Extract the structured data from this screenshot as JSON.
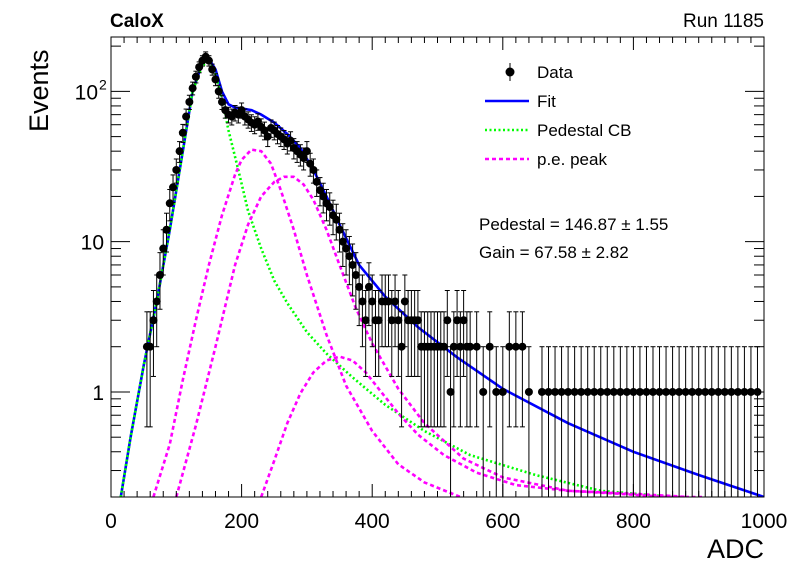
{
  "header": {
    "left": "CaloX",
    "right": "Run 1185"
  },
  "chart_data": {
    "type": "scatter",
    "xlabel": "ADC",
    "ylabel": "Events",
    "xlim": [
      0,
      1000
    ],
    "ylim": [
      0.2,
      230
    ],
    "yscale": "log",
    "x_ticks": [
      {
        "value": 0,
        "label": "0"
      },
      {
        "value": 200,
        "label": "200"
      },
      {
        "value": 400,
        "label": "400"
      },
      {
        "value": 600,
        "label": "600"
      },
      {
        "value": 800,
        "label": "800"
      },
      {
        "value": 1000,
        "label": "1000"
      }
    ],
    "y_ticks": [
      {
        "value": 1,
        "label": "1"
      },
      {
        "value": 10,
        "label": "10"
      },
      {
        "value": 100,
        "label": "10",
        "exp": "2"
      }
    ],
    "legend": {
      "position": "top-right",
      "entries": [
        {
          "label": "Data",
          "style": "marker",
          "color": "#000000"
        },
        {
          "label": "Fit",
          "style": "solid",
          "color": "#0000ff"
        },
        {
          "label": "Pedestal CB",
          "style": "dotted",
          "color": "#00ff00"
        },
        {
          "label": "p.e. peak",
          "style": "dashed",
          "color": "#ff00ff"
        }
      ]
    },
    "annotations": [
      {
        "text": "Pedestal = 146.87 ± 1.55"
      },
      {
        "text": "Gain = 67.58 ± 2.82"
      }
    ],
    "series": [
      {
        "name": "Data",
        "kind": "points",
        "color": "#000000",
        "x": [
          55,
          60,
          65,
          70,
          75,
          80,
          85,
          90,
          95,
          100,
          105,
          110,
          115,
          120,
          125,
          130,
          135,
          140,
          145,
          150,
          155,
          160,
          165,
          170,
          175,
          180,
          185,
          190,
          195,
          200,
          205,
          210,
          215,
          220,
          225,
          230,
          235,
          240,
          245,
          250,
          255,
          260,
          265,
          270,
          275,
          280,
          285,
          290,
          295,
          300,
          305,
          310,
          315,
          320,
          325,
          330,
          335,
          340,
          345,
          350,
          355,
          360,
          365,
          370,
          375,
          380,
          385,
          390,
          395,
          400,
          405,
          410,
          415,
          420,
          425,
          430,
          435,
          440,
          445,
          450,
          455,
          460,
          465,
          470,
          475,
          480,
          485,
          490,
          495,
          500,
          505,
          510,
          515,
          520,
          525,
          530,
          535,
          540,
          545,
          550,
          560,
          570,
          580,
          590,
          600,
          610,
          620,
          630,
          640,
          660,
          670,
          680,
          690,
          700,
          710,
          720,
          730,
          740,
          750,
          760,
          770,
          780,
          790,
          800,
          810,
          820,
          830,
          840,
          850,
          860,
          870,
          880,
          890,
          900,
          910,
          920,
          930,
          940,
          950,
          960,
          970,
          980,
          990
        ],
        "y": [
          2,
          2,
          3,
          4,
          6,
          9,
          12,
          18,
          23,
          30,
          40,
          53,
          68,
          85,
          105,
          125,
          145,
          160,
          170,
          160,
          140,
          120,
          100,
          85,
          75,
          70,
          68,
          72,
          70,
          75,
          68,
          65,
          62,
          60,
          63,
          58,
          55,
          50,
          57,
          55,
          52,
          50,
          48,
          45,
          47,
          42,
          40,
          38,
          36,
          40,
          33,
          30,
          25,
          22,
          20,
          18,
          17,
          15,
          14,
          12,
          10,
          9,
          8,
          7,
          6,
          5,
          4,
          3,
          5,
          4,
          3,
          3,
          4,
          4,
          4,
          3,
          4,
          3,
          2,
          4,
          3,
          3,
          3,
          3,
          2,
          2,
          2,
          2,
          2,
          2,
          2,
          2,
          3,
          1,
          2,
          3,
          2,
          3,
          2,
          2,
          2,
          1,
          2,
          1,
          1,
          2,
          2,
          2,
          1,
          1,
          1,
          1,
          1,
          1,
          1,
          1,
          1,
          1,
          1,
          1,
          1,
          1,
          1,
          1,
          1,
          1,
          1,
          1,
          1,
          1,
          1,
          1,
          1,
          1,
          1,
          1,
          1,
          1,
          1,
          1,
          1,
          1,
          1
        ]
      },
      {
        "name": "Fit",
        "kind": "curve",
        "color": "#0000ff",
        "x": [
          15,
          30,
          50,
          70,
          90,
          110,
          125,
          140,
          150,
          160,
          170,
          180,
          190,
          200,
          215,
          230,
          250,
          270,
          290,
          310,
          330,
          350,
          380,
          420,
          470,
          530,
          600,
          700,
          800,
          900,
          1000
        ],
        "y": [
          0.2,
          0.5,
          1.5,
          4,
          12,
          40,
          100,
          155,
          165,
          140,
          100,
          82,
          78,
          77,
          75,
          70,
          62,
          52,
          42,
          30,
          20,
          13,
          7,
          4.3,
          2.7,
          1.7,
          1.05,
          0.62,
          0.4,
          0.28,
          0.2
        ]
      },
      {
        "name": "Pedestal CB",
        "kind": "curve",
        "color": "#00ff00",
        "x": [
          15,
          30,
          50,
          70,
          90,
          110,
          125,
          140,
          150,
          160,
          170,
          180,
          195,
          210,
          230,
          250,
          270,
          300,
          330,
          370,
          420,
          480,
          550,
          650,
          750,
          860
        ],
        "y": [
          0.2,
          0.5,
          1.5,
          4,
          12,
          40,
          100,
          150,
          155,
          130,
          90,
          55,
          30,
          16,
          9,
          5.5,
          3.9,
          2.5,
          1.8,
          1.25,
          0.82,
          0.55,
          0.38,
          0.28,
          0.22,
          0.2
        ]
      },
      {
        "name": "p.e. peak 1",
        "kind": "curve",
        "color": "#ff00ff",
        "x": [
          65,
          90,
          110,
          130,
          150,
          170,
          190,
          200,
          215,
          230,
          245,
          260,
          280,
          300,
          330,
          360,
          400,
          440,
          480,
          535
        ],
        "y": [
          0.2,
          0.45,
          1.2,
          3,
          7,
          15,
          28,
          35,
          41,
          40,
          33,
          22,
          12,
          6,
          2.4,
          1.1,
          0.55,
          0.33,
          0.25,
          0.2
        ]
      },
      {
        "name": "p.e. peak 2",
        "kind": "curve",
        "color": "#ff00ff",
        "x": [
          100,
          130,
          160,
          190,
          210,
          230,
          250,
          265,
          280,
          295,
          310,
          330,
          350,
          375,
          400,
          440,
          480,
          540,
          600,
          700,
          800,
          885
        ],
        "y": [
          0.2,
          0.6,
          2,
          7,
          13,
          20,
          25,
          27,
          27,
          24,
          19,
          12,
          7,
          3.6,
          2.1,
          1.05,
          0.62,
          0.36,
          0.27,
          0.22,
          0.21,
          0.2
        ]
      },
      {
        "name": "p.e. peak 3",
        "kind": "curve",
        "color": "#ff00ff",
        "x": [
          230,
          250,
          270,
          290,
          310,
          330,
          350,
          370,
          390,
          410,
          440,
          470,
          510,
          560,
          620,
          700,
          780,
          850,
          905
        ],
        "y": [
          0.2,
          0.35,
          0.62,
          0.98,
          1.35,
          1.62,
          1.72,
          1.62,
          1.35,
          1.05,
          0.72,
          0.52,
          0.38,
          0.29,
          0.24,
          0.22,
          0.21,
          0.2,
          0.2
        ]
      }
    ]
  }
}
